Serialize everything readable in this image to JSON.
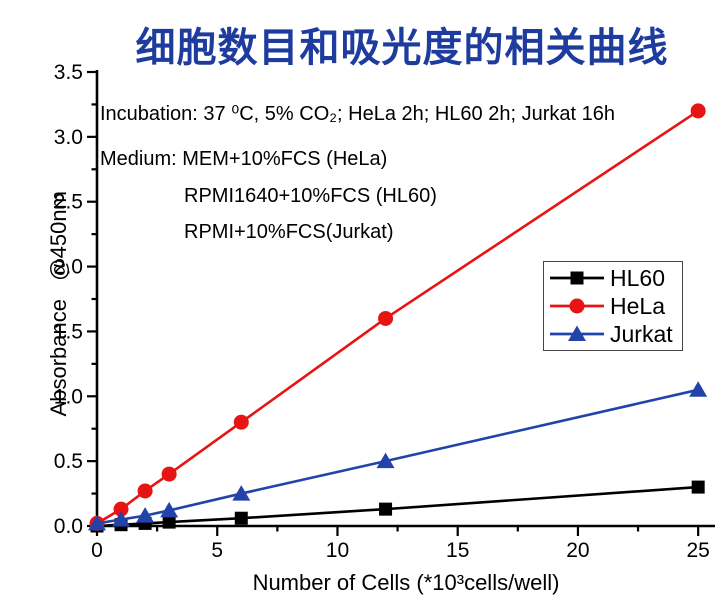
{
  "annotations": {
    "line1": "Incubation: 37 ⁰C, 5% CO₂; HeLa 2h; HL60 2h; Jurkat 16h",
    "line2": "Medium: MEM+10%FCS (HeLa)",
    "line3": "RPMI1640+10%FCS (HL60)",
    "line4": "RPMI+10%FCS(Jurkat)"
  },
  "colors": {
    "title": "#1e3c9e",
    "axis": "#000000",
    "hl60": "#000000",
    "hela": "#e81414",
    "jurkat": "#2244aa",
    "legend_border": "#444444",
    "background": "#ffffff"
  },
  "chart_data": {
    "type": "line",
    "title": "细胞数目和吸光度的相关曲线",
    "xlabel": "Number of Cells (*10³cells/well)",
    "ylabel": "Absorbance   @450nm",
    "x": [
      0,
      1,
      2,
      3,
      6,
      12,
      25
    ],
    "series": [
      {
        "name": "HL60",
        "marker": "square",
        "color": "#000000",
        "values": [
          0.0,
          0.01,
          0.02,
          0.03,
          0.06,
          0.13,
          0.3
        ]
      },
      {
        "name": "HeLa",
        "marker": "circle",
        "color": "#e81414",
        "values": [
          0.02,
          0.13,
          0.27,
          0.4,
          0.8,
          1.6,
          3.2
        ]
      },
      {
        "name": "Jurkat",
        "marker": "triangle",
        "color": "#2244aa",
        "values": [
          0.02,
          0.05,
          0.08,
          0.12,
          0.25,
          0.5,
          1.05
        ]
      }
    ],
    "xlim": [
      0,
      25.7
    ],
    "ylim": [
      0,
      3.5
    ],
    "x_major_ticks": [
      0,
      5,
      10,
      15,
      20,
      25
    ],
    "x_minor_step": 2.5,
    "y_major_ticks": [
      0.0,
      0.5,
      1.0,
      1.5,
      2.0,
      2.5,
      3.0,
      3.5
    ],
    "y_minor_step": 0.25,
    "grid": false,
    "frame": "left-bottom-only",
    "tick_direction": "out",
    "legend_position": "right-middle"
  }
}
